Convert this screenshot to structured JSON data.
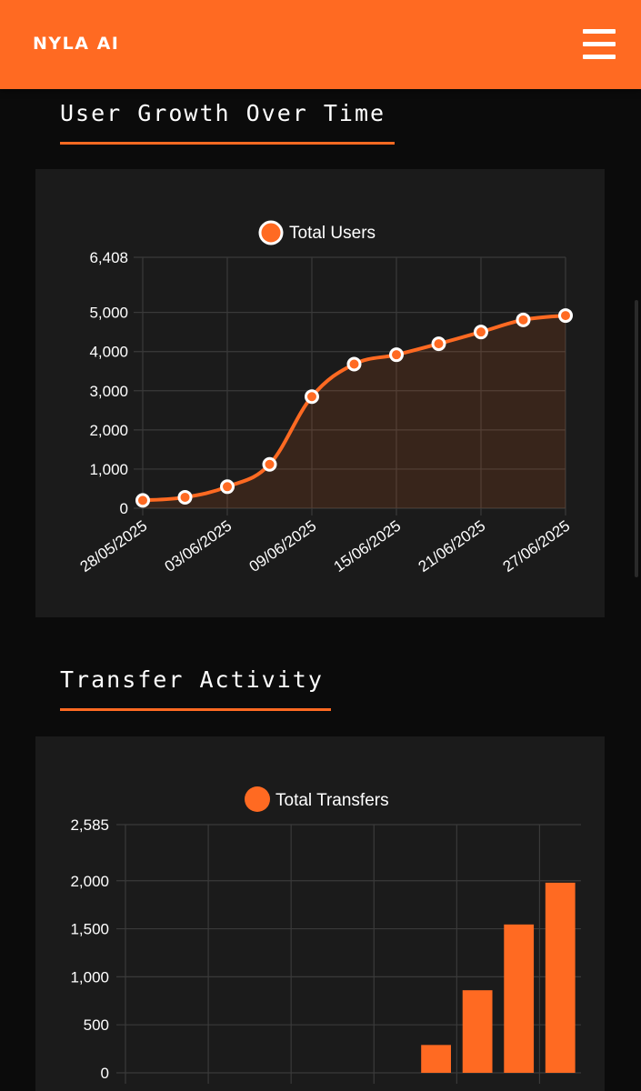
{
  "app": {
    "brand": "NYLA AI"
  },
  "header": {
    "menu_icon": "hamburger-menu-icon"
  },
  "colors": {
    "accent": "#ff6a22",
    "background": "#0b0b0b",
    "card": "#1b1b1b",
    "grid": "#3a3a3a"
  },
  "sections": [
    {
      "title": "User Growth Over Time"
    },
    {
      "title": "Transfer Activity"
    }
  ],
  "chart_data": [
    {
      "type": "line",
      "legend": [
        "Total Users"
      ],
      "x": [
        "28/05/2025",
        "31/05/2025",
        "03/06/2025",
        "06/06/2025",
        "09/06/2025",
        "12/06/2025",
        "15/06/2025",
        "18/06/2025",
        "21/06/2025",
        "24/06/2025",
        "27/06/2025"
      ],
      "x_tick_labels": [
        "28/05/2025",
        "03/06/2025",
        "09/06/2025",
        "15/06/2025",
        "21/06/2025",
        "27/06/2025"
      ],
      "series": [
        {
          "name": "Total Users",
          "values": [
            200,
            280,
            550,
            1120,
            2850,
            3680,
            3920,
            4200,
            4500,
            4810,
            4920
          ]
        }
      ],
      "y_ticks": [
        0,
        1000,
        2000,
        3000,
        4000,
        5000,
        6408
      ],
      "y_tick_labels": [
        "0",
        "1,000",
        "2,000",
        "3,000",
        "4,000",
        "5,000",
        "6,408"
      ],
      "ylim": [
        0,
        6408
      ],
      "fill": "area",
      "grid": true,
      "legend_position": "top"
    },
    {
      "type": "bar",
      "legend": [
        "Total Transfers"
      ],
      "series": [
        {
          "name": "Total Transfers",
          "values": [
            0,
            0,
            0,
            0,
            0,
            0,
            0,
            290,
            860,
            1545,
            1980
          ]
        }
      ],
      "y_ticks": [
        0,
        500,
        1000,
        1500,
        2000,
        2585
      ],
      "y_tick_labels": [
        "0",
        "500",
        "1,000",
        "1,500",
        "2,000",
        "2,585"
      ],
      "ylim": [
        0,
        2585
      ],
      "grid": true,
      "legend_position": "top"
    }
  ]
}
